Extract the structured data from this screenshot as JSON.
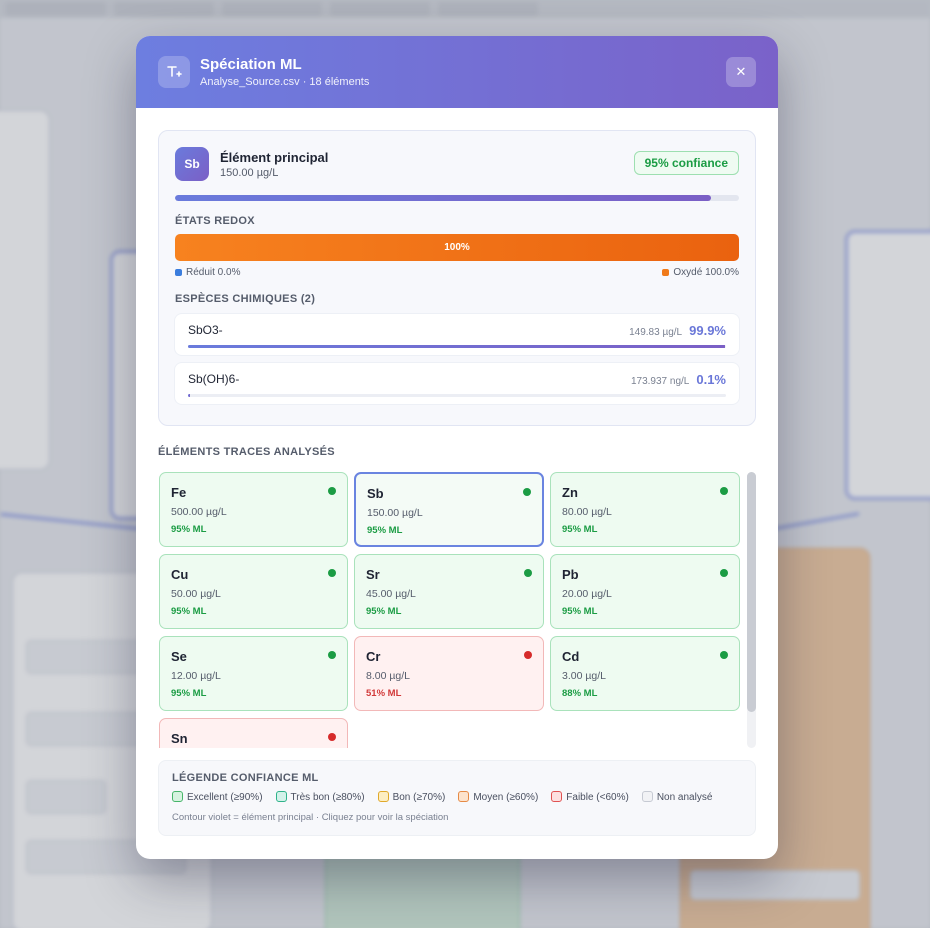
{
  "modal": {
    "title": "Spéciation ML",
    "subtitle": "Analyse_Source.csv · 18 éléments",
    "close_label": "✕",
    "header_icon": "T+"
  },
  "principal": {
    "symbol": "Sb",
    "title": "Élément principal",
    "concentration": "150.00 µg/L",
    "confidence": "95% confiance",
    "confidence_fraction": 0.95
  },
  "redox": {
    "label": "ÉTATS REDOX",
    "bar_label": "100%",
    "reduced": "Réduit 0.0%",
    "oxidized": "Oxydé 100.0%",
    "reduced_color": "#3b7ddd",
    "oxidized_color": "#f07a1a"
  },
  "species": {
    "label": "ESPÈCES CHIMIQUES (2)",
    "items": [
      {
        "name": "SbO3-",
        "amount": "149.83 µg/L",
        "pct": "99.9%",
        "fraction": 0.999
      },
      {
        "name": "Sb(OH)6-",
        "amount": "173.937 ng/L",
        "pct": "0.1%",
        "fraction": 0.001
      }
    ]
  },
  "traces": {
    "label": "ÉLÉMENTS TRACES ANALYSÉS",
    "items": [
      {
        "symbol": "Fe",
        "value": "500.00 µg/L",
        "ml": "95% ML",
        "status": "ok",
        "selected": false
      },
      {
        "symbol": "Sb",
        "value": "150.00 µg/L",
        "ml": "95% ML",
        "status": "ok",
        "selected": true
      },
      {
        "symbol": "Zn",
        "value": "80.00 µg/L",
        "ml": "95% ML",
        "status": "ok",
        "selected": false
      },
      {
        "symbol": "Cu",
        "value": "50.00 µg/L",
        "ml": "95% ML",
        "status": "ok",
        "selected": false
      },
      {
        "symbol": "Sr",
        "value": "45.00 µg/L",
        "ml": "95% ML",
        "status": "ok",
        "selected": false
      },
      {
        "symbol": "Pb",
        "value": "20.00 µg/L",
        "ml": "95% ML",
        "status": "ok",
        "selected": false
      },
      {
        "symbol": "Se",
        "value": "12.00 µg/L",
        "ml": "95% ML",
        "status": "ok",
        "selected": false
      },
      {
        "symbol": "Cr",
        "value": "8.00 µg/L",
        "ml": "51% ML",
        "status": "bad",
        "selected": false
      },
      {
        "symbol": "Cd",
        "value": "3.00 µg/L",
        "ml": "88% ML",
        "status": "ok",
        "selected": false
      },
      {
        "symbol": "Sn",
        "value": "",
        "ml": "",
        "status": "bad",
        "selected": false
      }
    ]
  },
  "legend": {
    "title": "LÉGENDE CONFIANCE ML",
    "items": [
      {
        "label": "Excellent (≥90%)",
        "color": "#d6f3df",
        "border": "#47b56a"
      },
      {
        "label": "Très bon (≥80%)",
        "color": "#d3f2ea",
        "border": "#2fb38a"
      },
      {
        "label": "Bon (≥70%)",
        "color": "#fdeec2",
        "border": "#e0a92a"
      },
      {
        "label": "Moyen (≥60%)",
        "color": "#fde3cc",
        "border": "#e68a45"
      },
      {
        "label": "Faible (<60%)",
        "color": "#fde0e0",
        "border": "#e05252"
      },
      {
        "label": "Non analysé",
        "color": "#f1f2f5",
        "border": "#c6cad3"
      }
    ],
    "note": "Contour violet = élément principal · Cliquez pour voir la spéciation"
  }
}
